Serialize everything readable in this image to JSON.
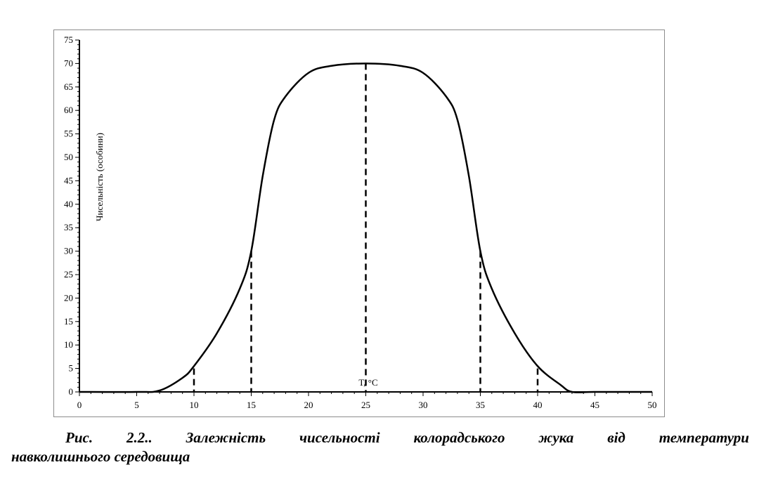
{
  "chart_data": {
    "type": "line",
    "title": "",
    "xlabel": "T, °C",
    "ylabel": "Чисельність (особини)",
    "xlim": [
      0,
      50
    ],
    "ylim": [
      0,
      75
    ],
    "x_ticks": [
      0,
      5,
      10,
      15,
      20,
      25,
      30,
      35,
      40,
      45,
      50
    ],
    "y_ticks": [
      0,
      5,
      10,
      15,
      20,
      25,
      30,
      35,
      40,
      45,
      50,
      55,
      60,
      65,
      70,
      75
    ],
    "grid": false,
    "legend": "none",
    "series": [
      {
        "x": [
          0,
          5,
          7,
          9,
          10,
          12,
          14,
          15,
          16,
          17,
          18,
          20,
          22,
          25,
          28,
          30,
          32,
          33,
          34,
          35,
          36,
          38,
          40,
          42,
          43,
          45,
          50
        ],
        "y": [
          0,
          0,
          0.3,
          3,
          5.5,
          12.5,
          22,
          30,
          46,
          58,
          63,
          68,
          69.5,
          70,
          69.5,
          68,
          63,
          58,
          46,
          30,
          22,
          12.5,
          5.5,
          1.5,
          0,
          0,
          0
        ]
      }
    ],
    "reference_lines": [
      {
        "x": 10,
        "y": 5
      },
      {
        "x": 15,
        "y": 30
      },
      {
        "x": 25,
        "y": 70
      },
      {
        "x": 35,
        "y": 30
      },
      {
        "x": 40,
        "y": 5
      }
    ],
    "line_color": "#000000"
  },
  "caption": {
    "line1": "Рис. 2.2.. Залежність чисельності колорадського жука від температури",
    "line2": "навколишнього середовища"
  }
}
